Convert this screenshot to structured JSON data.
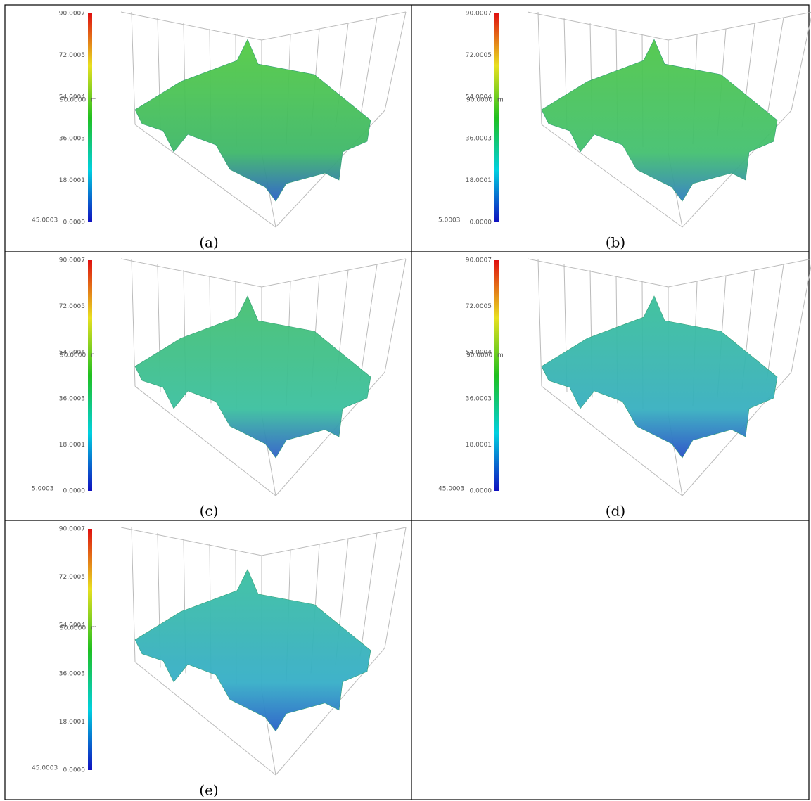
{
  "panels": [
    {
      "caption": "(a)",
      "colorbar_ticks": [
        "90.0007",
        "72.0005",
        "54.0004",
        "36.0003",
        "18.0001",
        "0.0000"
      ],
      "overlap_low": "45.0003",
      "overlap_mid": "90.0000",
      "unit": "m"
    },
    {
      "caption": "(b)",
      "colorbar_ticks": [
        "90.0007",
        "72.0005",
        "54.0004",
        "36.0003",
        "18.0001",
        "0.0000"
      ],
      "overlap_low": "5.0003",
      "overlap_mid": "90.0000",
      "unit": "m"
    },
    {
      "caption": "(c)",
      "colorbar_ticks": [
        "90.0007",
        "72.0005",
        "54.0004",
        "36.0003",
        "18.0001",
        "0.0000"
      ],
      "overlap_low": "5.0003",
      "overlap_mid": "90.0000",
      "unit": "r"
    },
    {
      "caption": "(d)",
      "colorbar_ticks": [
        "90.0007",
        "72.0005",
        "54.0004",
        "36.0003",
        "18.0001",
        "0.0000"
      ],
      "overlap_low": "45.0003",
      "overlap_mid": "90.0000",
      "unit": "m"
    },
    {
      "caption": "(e)",
      "colorbar_ticks": [
        "90.0007",
        "72.0005",
        "54.0004",
        "36.0003",
        "18.0001",
        "0.0000"
      ],
      "overlap_low": "45.0003",
      "overlap_mid": "90.0000",
      "unit": "m"
    }
  ]
}
